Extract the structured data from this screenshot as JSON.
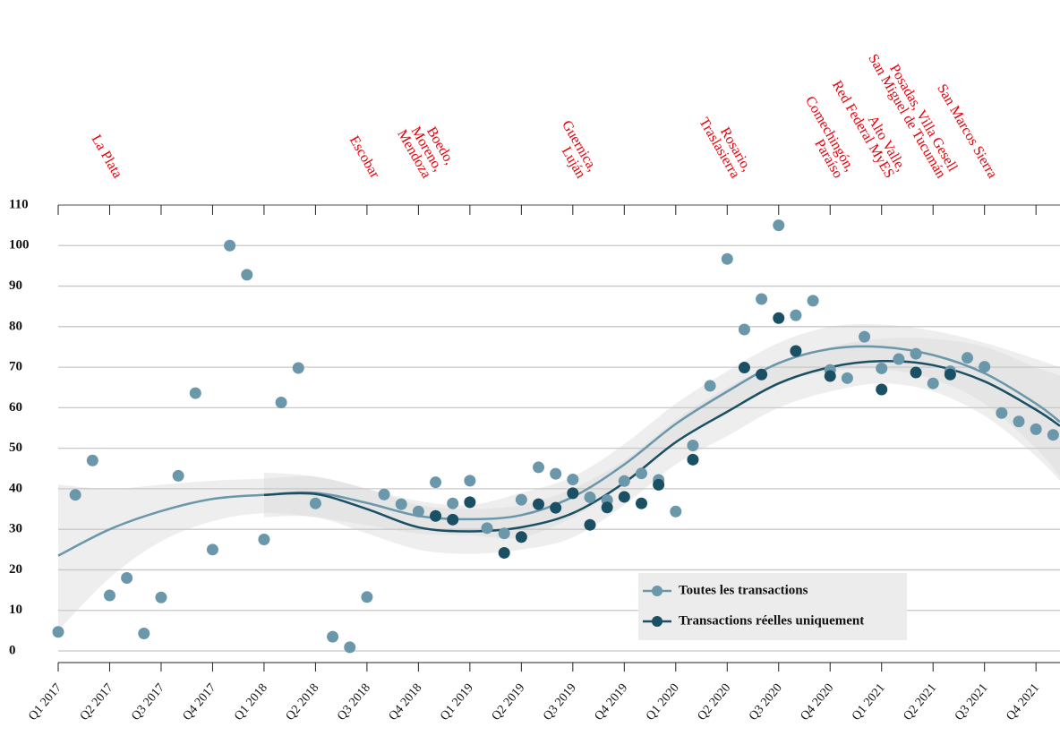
{
  "chart_data": {
    "type": "scatter",
    "x": [
      0,
      1,
      2,
      3,
      4,
      5,
      6,
      7,
      8,
      9,
      10,
      11,
      12,
      13,
      14,
      15,
      16,
      17,
      18,
      19,
      20,
      21,
      22,
      23,
      24,
      25,
      26,
      27,
      28,
      29,
      30,
      31,
      32,
      33,
      34,
      35,
      36,
      37,
      38,
      39,
      40,
      41,
      42,
      43,
      44,
      45,
      46,
      47,
      48,
      49,
      50,
      51,
      52,
      53,
      54,
      55,
      56,
      57,
      58
    ],
    "xlim": [
      0,
      58.4
    ],
    "xticks": [
      {
        "value": 0,
        "label": "Q1 2017"
      },
      {
        "value": 3,
        "label": "Q2 2017"
      },
      {
        "value": 6,
        "label": "Q3 2017"
      },
      {
        "value": 9,
        "label": "Q4 2017"
      },
      {
        "value": 12,
        "label": "Q1 2018"
      },
      {
        "value": 15,
        "label": "Q2 2018"
      },
      {
        "value": 18,
        "label": "Q3 2018"
      },
      {
        "value": 21,
        "label": "Q4 2018"
      },
      {
        "value": 24,
        "label": "Q1 2019"
      },
      {
        "value": 27,
        "label": "Q2 2019"
      },
      {
        "value": 30,
        "label": "Q3 2019"
      },
      {
        "value": 33,
        "label": "Q4 2019"
      },
      {
        "value": 36,
        "label": "Q1 2020"
      },
      {
        "value": 39,
        "label": "Q2 2020"
      },
      {
        "value": 42,
        "label": "Q3 2020"
      },
      {
        "value": 45,
        "label": "Q4 2020"
      },
      {
        "value": 48,
        "label": "Q1 2021"
      },
      {
        "value": 51,
        "label": "Q2 2021"
      },
      {
        "value": 54,
        "label": "Q3 2021"
      },
      {
        "value": 57,
        "label": "Q4 2021"
      }
    ],
    "ylim": [
      0,
      110
    ],
    "yticks": [
      0,
      10,
      20,
      30,
      40,
      50,
      60,
      70,
      80,
      90,
      100,
      110
    ],
    "grid": true,
    "legend": "bottom-right",
    "trend_x": [
      0,
      3,
      6,
      9,
      12,
      15,
      18,
      21,
      24,
      27,
      30,
      33,
      36,
      39,
      42,
      45,
      48,
      51,
      54,
      57,
      58.4
    ],
    "series": [
      {
        "name": "Toutes les transactions",
        "color": "#6b97aa",
        "values": [
          4.7,
          38.5,
          47,
          13.7,
          18,
          4.3,
          13.2,
          43.2,
          63.6,
          25,
          100,
          92.8,
          27.5,
          61.3,
          69.8,
          36.4,
          3.5,
          0.9,
          13.3,
          38.6,
          36.2,
          34.4,
          41.6,
          36.4,
          42,
          30.3,
          29,
          37.3,
          45.3,
          43.7,
          42.3,
          37.9,
          37.2,
          41.9,
          43.8,
          42.2,
          34.4,
          50.7,
          65.4,
          96.7,
          79.3,
          86.8,
          105,
          82.8,
          86.4,
          69.3,
          67.3,
          77.5,
          69.7,
          72,
          73.3,
          66,
          69,
          72.3,
          70.1,
          58.7,
          56.6,
          54.7,
          53.3
        ],
        "trend": [
          23.5,
          30,
          34.5,
          37.5,
          38.5,
          39,
          36.5,
          33.3,
          32.5,
          33.5,
          38,
          46,
          56,
          64,
          71,
          74.5,
          75,
          73,
          68.5,
          61,
          56.5
        ],
        "trend_lower": [
          5,
          18,
          27,
          32,
          34,
          33,
          31,
          29,
          28.5,
          28,
          33,
          41,
          51,
          59,
          66,
          69,
          69.5,
          67,
          61,
          50,
          43
        ],
        "trend_upper": [
          41,
          40,
          41,
          42,
          42.5,
          43,
          40,
          37,
          36,
          39,
          43,
          51,
          61,
          69,
          76,
          80,
          80.5,
          79,
          76,
          72,
          70
        ]
      },
      {
        "name": "Transactions réelles uniquement",
        "color": "#1b4f63",
        "values": [
          null,
          null,
          null,
          null,
          null,
          null,
          null,
          null,
          null,
          null,
          null,
          null,
          null,
          null,
          null,
          null,
          null,
          null,
          null,
          null,
          null,
          null,
          33.3,
          32.4,
          36.7,
          null,
          24.2,
          28.1,
          36.2,
          35.3,
          38.9,
          31.1,
          35.4,
          38,
          36.4,
          41,
          null,
          47.2,
          null,
          null,
          69.9,
          68.2,
          82.1,
          74,
          null,
          67.8,
          null,
          null,
          64.5,
          null,
          68.7,
          null,
          68.2,
          null,
          null,
          null,
          null,
          null,
          null
        ],
        "trend": [
          null,
          null,
          null,
          null,
          38.5,
          38.7,
          35,
          30.5,
          29.5,
          30.5,
          34,
          41.5,
          51.5,
          59,
          66,
          70,
          71.5,
          70.5,
          66.5,
          59.5,
          55.5
        ],
        "trend_lower": [
          null,
          null,
          null,
          null,
          33,
          33,
          29,
          25,
          24,
          25,
          28,
          36,
          46,
          53,
          60,
          64,
          66,
          64,
          58,
          48,
          42
        ],
        "trend_upper": [
          null,
          null,
          null,
          null,
          44,
          43,
          40,
          36,
          35,
          36,
          40,
          47,
          57,
          65,
          71,
          75,
          77,
          77,
          75,
          70,
          68
        ]
      }
    ],
    "annotations": [
      {
        "x": 3,
        "lines": [
          "La Plata"
        ]
      },
      {
        "x": 18,
        "lines": [
          "Escobar"
        ]
      },
      {
        "x": 21,
        "lines": [
          "Boedo,",
          "Moreno,",
          "Mendoza"
        ]
      },
      {
        "x": 30,
        "lines": [
          "Guernica,",
          "Luján"
        ]
      },
      {
        "x": 39,
        "lines": [
          "Rosario,",
          "Traslasierra"
        ]
      },
      {
        "x": 45,
        "lines": [
          "Comechingón,",
          "Paraíso"
        ]
      },
      {
        "x": 48,
        "lines": [
          "Alto Valle,",
          "Red Federal MyES"
        ]
      },
      {
        "x": 51,
        "lines": [
          "Posadas, Villa Gesell",
          "San Miguel de Tucumán"
        ]
      },
      {
        "x": 54,
        "lines": [
          "San Marcos Sierra"
        ]
      }
    ]
  }
}
